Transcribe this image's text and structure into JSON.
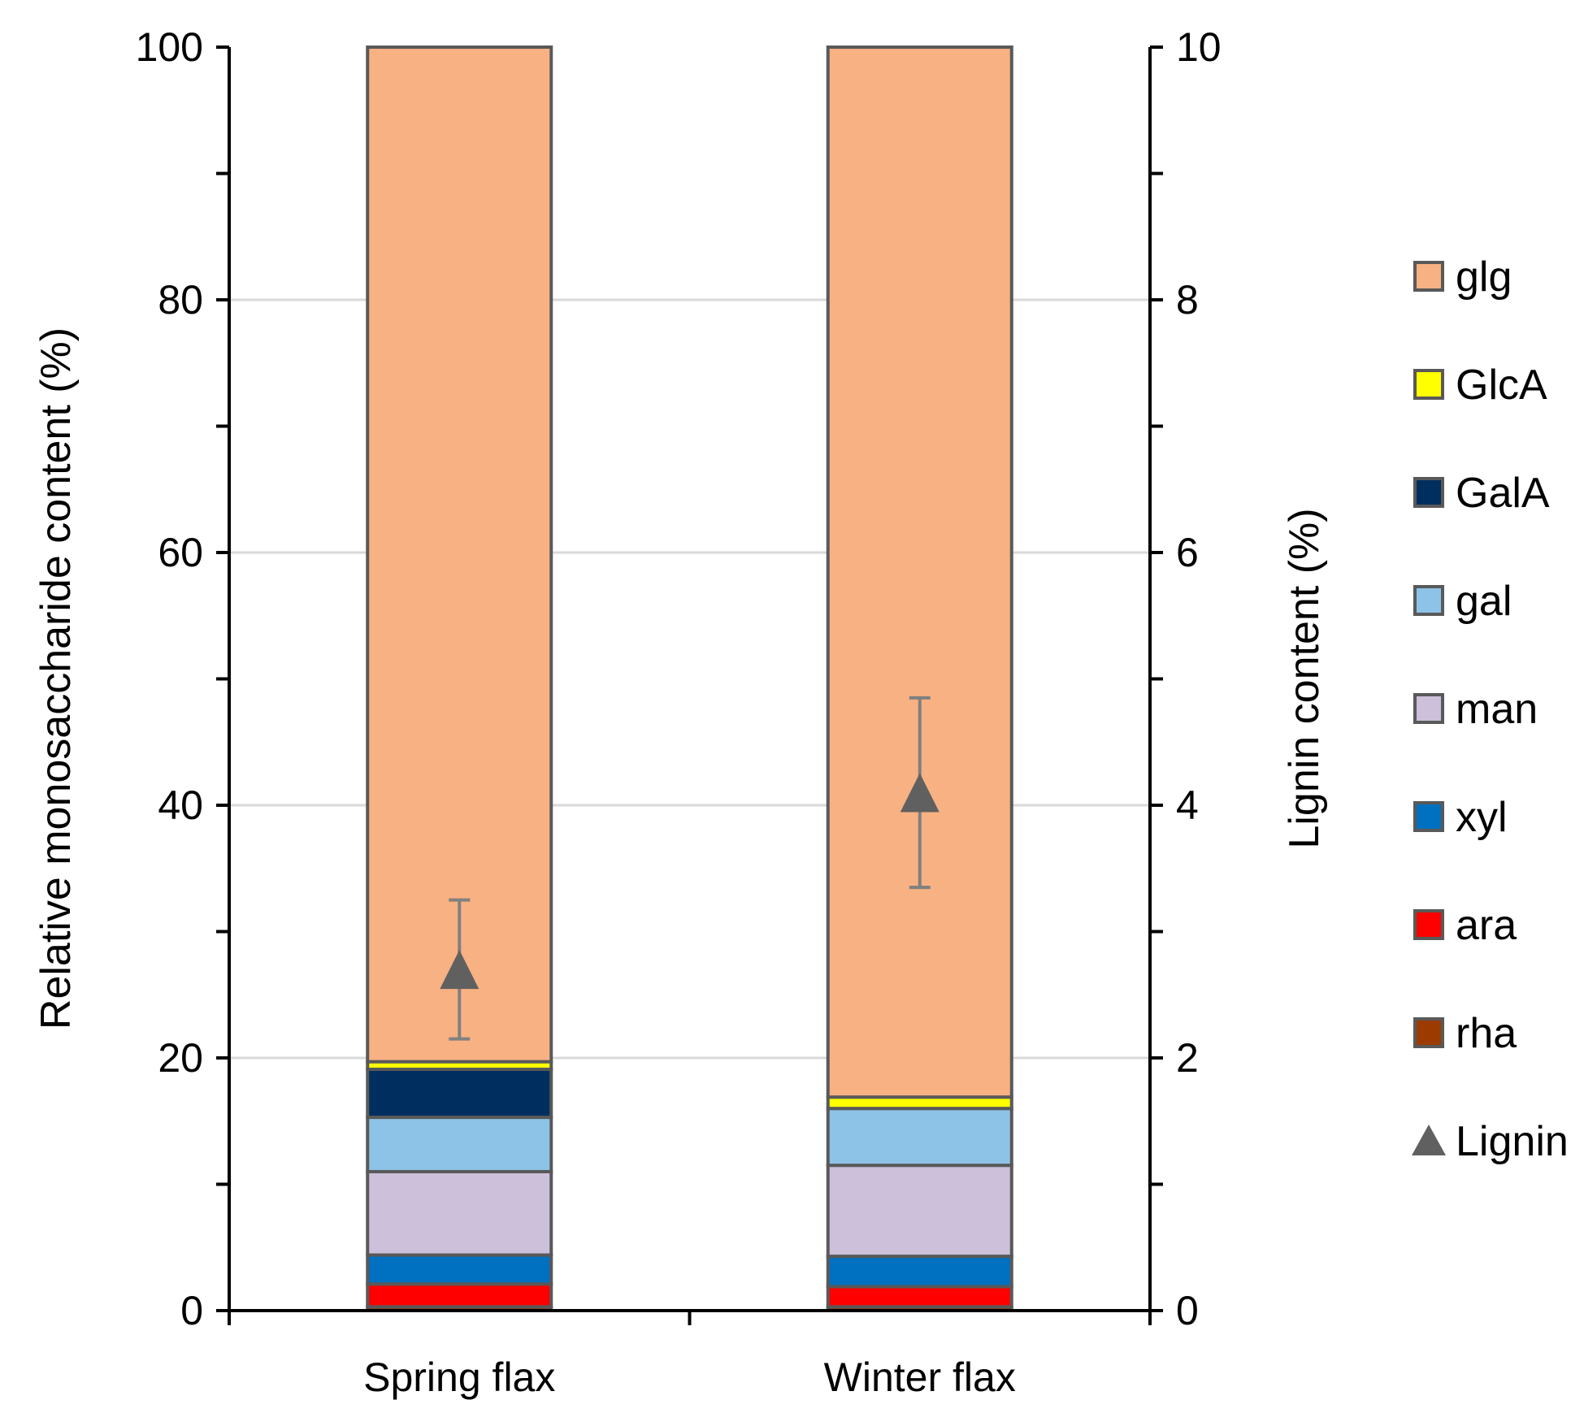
{
  "chart_data": {
    "type": "bar",
    "stacked": true,
    "categories": [
      "Spring flax",
      "Winter flax"
    ],
    "ylabel": "Relative monosaccharide content (%)",
    "ylabel_right": "Lignin content (%)",
    "ylim": [
      0,
      100
    ],
    "ylim_right": [
      0,
      10
    ],
    "yticks": [
      "0",
      "20",
      "40",
      "60",
      "80",
      "100"
    ],
    "yticks_right": [
      "0",
      "2",
      "4",
      "6",
      "8",
      "10"
    ],
    "grid": "horizontal",
    "legend_position": "right",
    "series": [
      {
        "name": "rha",
        "color": "#9C3B00",
        "values": [
          0.3,
          0.3
        ]
      },
      {
        "name": "ara",
        "color": "#FF0000",
        "values": [
          1.8,
          1.6
        ]
      },
      {
        "name": "xyl",
        "color": "#0070C0",
        "values": [
          2.3,
          2.4
        ]
      },
      {
        "name": "man",
        "color": "#CCC0DA",
        "values": [
          6.6,
          7.2
        ]
      },
      {
        "name": "gal",
        "color": "#8DC3E6",
        "values": [
          4.3,
          4.5
        ]
      },
      {
        "name": "GalA",
        "color": "#002F5F",
        "values": [
          3.8,
          0.0
        ]
      },
      {
        "name": "GlcA",
        "color": "#FFFF00",
        "values": [
          0.6,
          0.9
        ]
      },
      {
        "name": "glg",
        "color": "#F8B182",
        "values": [
          80.3,
          83.1
        ]
      }
    ],
    "lignin": {
      "name": "Lignin",
      "color": "#606060",
      "values": [
        2.7,
        4.1
      ],
      "error": [
        0.55,
        0.75
      ]
    }
  }
}
